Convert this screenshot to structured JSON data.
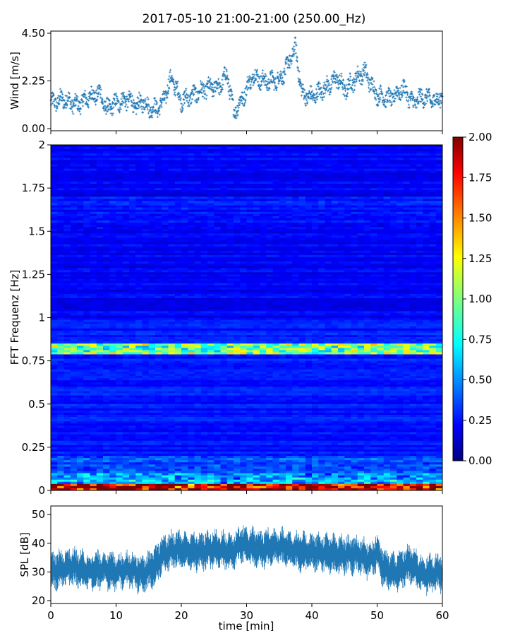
{
  "title": "2017-05-10 21:00-21:00 (250.00_Hz)",
  "chart_data": [
    {
      "type": "scatter",
      "ylabel": "Wind [m/s]",
      "xlim": [
        0,
        60
      ],
      "ylim": [
        -0.1,
        4.6
      ],
      "yticks": [
        "0.00",
        "2.25",
        "4.50"
      ],
      "marker": "+",
      "color": "#1f77b4",
      "series": [
        {
          "x": [
            0,
            2,
            4,
            6,
            7.5,
            8.5,
            10,
            12,
            13,
            14,
            15.5,
            17,
            18.5,
            20,
            22,
            24,
            26,
            27,
            28,
            29,
            31,
            33,
            35,
            36,
            37.5,
            38.5,
            40,
            42,
            44,
            45,
            46.5,
            48,
            50,
            52,
            54,
            55.5,
            57,
            59,
            60
          ],
          "y": [
            1.2,
            1.4,
            1.1,
            1.5,
            1.7,
            0.9,
            1.2,
            1.4,
            1.0,
            1.3,
            0.9,
            1.1,
            2.4,
            1.3,
            1.6,
            1.9,
            2.0,
            2.6,
            0.8,
            1.2,
            2.5,
            2.2,
            2.3,
            2.8,
            3.8,
            1.6,
            1.5,
            1.9,
            2.4,
            1.8,
            2.3,
            2.7,
            1.6,
            1.4,
            1.9,
            1.2,
            1.5,
            1.3,
            1.6
          ]
        }
      ]
    },
    {
      "type": "heatmap",
      "ylabel": "FFT Frequenz [Hz]",
      "xlim": [
        0,
        60
      ],
      "ylim": [
        0,
        2
      ],
      "yticks": [
        "0",
        "0.25",
        "0.5",
        "0.75",
        "1",
        "1.25",
        "1.5",
        "1.75",
        "2"
      ],
      "colormap": "jet",
      "colorbar": {
        "range": [
          0,
          2
        ],
        "ticks": [
          "0.00",
          "0.25",
          "0.50",
          "0.75",
          "1.00",
          "1.25",
          "1.50",
          "1.75",
          "2.00"
        ]
      }
    },
    {
      "type": "area",
      "xlabel": "time [min]",
      "ylabel": "SPL [dB]",
      "xlim": [
        0,
        60
      ],
      "ylim": [
        19,
        53
      ],
      "xticks": [
        "0",
        "10",
        "20",
        "30",
        "40",
        "50",
        "60"
      ],
      "yticks": [
        "20",
        "30",
        "40",
        "50"
      ],
      "color": "#1f77b4",
      "series": [
        {
          "x": [
            0,
            3,
            6,
            8,
            10,
            12,
            14,
            16,
            17,
            19,
            22,
            25,
            28,
            29,
            32,
            35,
            38,
            41,
            44,
            47,
            49,
            50,
            51,
            53,
            55,
            57,
            60
          ],
          "y": [
            30,
            32,
            30,
            31,
            30,
            31,
            29,
            32,
            36,
            38,
            37,
            38,
            37,
            40,
            38,
            39,
            37,
            37,
            36,
            36,
            34,
            37,
            31,
            30,
            33,
            29,
            30
          ]
        }
      ]
    }
  ]
}
